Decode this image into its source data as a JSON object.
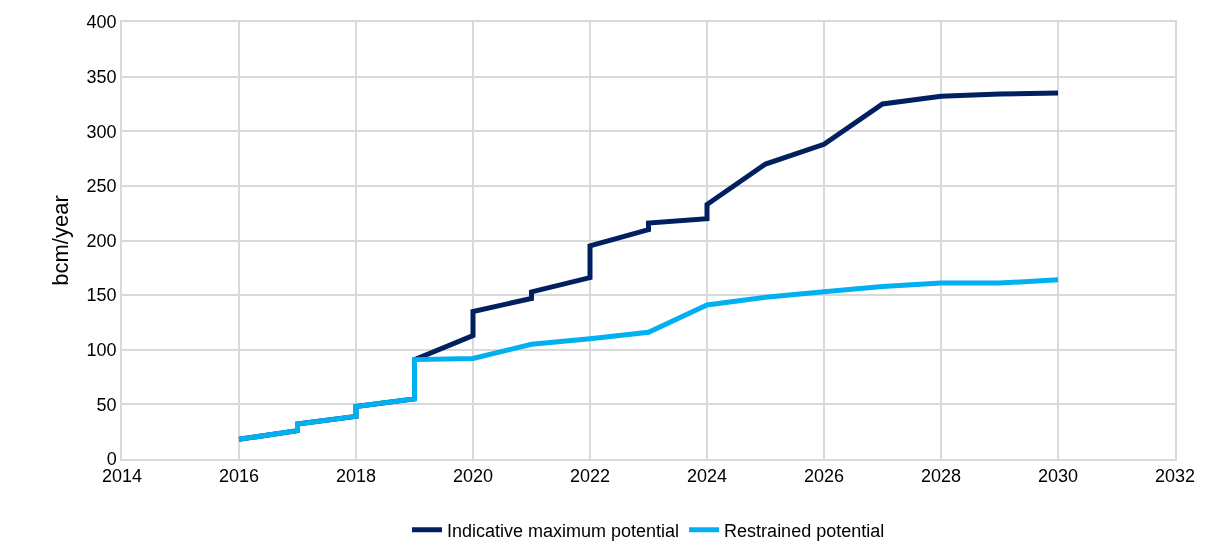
{
  "chart_data": {
    "type": "line",
    "ylabel": "bcm/year",
    "xlim": [
      2014,
      2032
    ],
    "xticks": [
      2014,
      2016,
      2018,
      2020,
      2022,
      2024,
      2026,
      2028,
      2030,
      2032
    ],
    "ylim": [
      0,
      400
    ],
    "yticks": [
      0,
      50,
      100,
      150,
      200,
      250,
      300,
      350,
      400
    ],
    "grid": true,
    "legend": "bottom",
    "line_style": "solid",
    "marker": "none",
    "series": [
      {
        "name": "Indicative maximum potential",
        "color": "#002060",
        "x": [
          2016,
          2017,
          2017,
          2018,
          2018,
          2019,
          2019,
          2020,
          2020,
          2021,
          2021,
          2022,
          2022,
          2023,
          2023,
          2024,
          2024,
          2025,
          2026,
          2027,
          2028,
          2029,
          2030
        ],
        "values": [
          18,
          26,
          32,
          39,
          48,
          55,
          91,
          113,
          135,
          147,
          153,
          166,
          195,
          210,
          216,
          220,
          233,
          270,
          288,
          325,
          332,
          334,
          335
        ]
      },
      {
        "name": "Restrained potential",
        "color": "#00b0f0",
        "x": [
          2016,
          2017,
          2017,
          2018,
          2018,
          2019,
          2019,
          2020,
          2021,
          2022,
          2023,
          2024,
          2025,
          2026,
          2027,
          2028,
          2029,
          2030
        ],
        "values": [
          18,
          26,
          32,
          39,
          48,
          55,
          91,
          92,
          105,
          110,
          116,
          141,
          148,
          153,
          158,
          161,
          161,
          164
        ]
      }
    ]
  }
}
